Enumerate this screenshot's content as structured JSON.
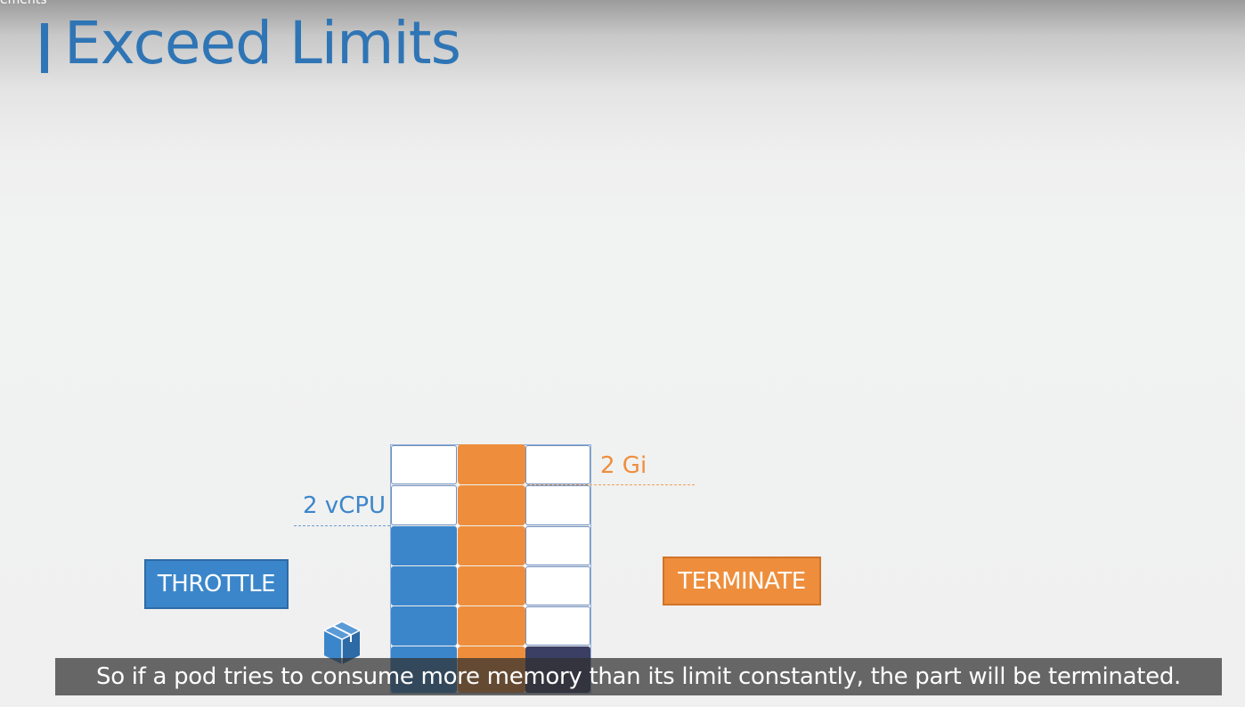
{
  "slide": {
    "corner_text": "ements",
    "title": "Exceed Limits"
  },
  "diagram": {
    "cpu_limit_label": "2 vCPU",
    "memory_limit_label": "2 Gi",
    "throttle_label": "THROTTLE",
    "terminate_label": "TERMINATE",
    "cpu_color": "#3b86ca",
    "memory_color": "#ee8e3c",
    "pod_icon": "cube-icon"
  },
  "caption": {
    "text": "So if a pod tries to consume more memory than its limit constantly, the part will be terminated."
  }
}
